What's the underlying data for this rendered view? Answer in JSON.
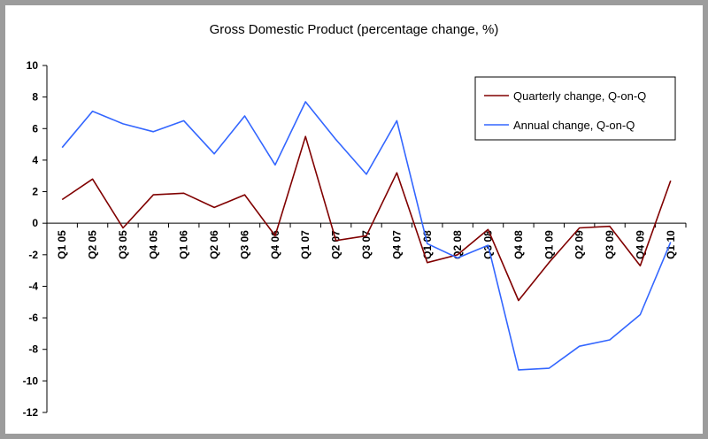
{
  "chart_data": {
    "type": "line",
    "title": "Gross Domestic Product (percentage change, %)",
    "xlabel": "",
    "ylabel": "",
    "categories": [
      "Q1 05",
      "Q2 05",
      "Q3 05",
      "Q4 05",
      "Q1 06",
      "Q2 06",
      "Q3 06",
      "Q4 06",
      "Q1 07",
      "Q2 07",
      "Q3 07",
      "Q4 07",
      "Q1 08",
      "Q2 08",
      "Q3 08",
      "Q4 08",
      "Q1 09",
      "Q2 09",
      "Q3 09",
      "Q4 09",
      "Q1 10"
    ],
    "ylim": [
      -12,
      10
    ],
    "yticks": [
      "-12",
      "-10",
      "-8",
      "-6",
      "-4",
      "-2",
      "0",
      "2",
      "4",
      "6",
      "8",
      "10"
    ],
    "grid": false,
    "legend_position": "top-right",
    "series": [
      {
        "name": "Quarterly change, Q-on-Q",
        "color": "#800000",
        "values": [
          1.5,
          2.8,
          -0.3,
          1.8,
          1.9,
          1.0,
          1.8,
          -0.8,
          5.5,
          -1.1,
          -0.8,
          3.2,
          -2.5,
          -2.0,
          -0.4,
          -4.9,
          -2.5,
          -0.3,
          -0.2,
          -2.7,
          2.7
        ]
      },
      {
        "name": "Annual change, Q-on-Q",
        "color": "#3366ff",
        "values": [
          4.8,
          7.1,
          6.3,
          5.8,
          6.5,
          4.4,
          6.8,
          3.7,
          7.7,
          5.3,
          3.1,
          6.5,
          -1.3,
          -2.2,
          -1.4,
          -9.3,
          -9.2,
          -7.8,
          -7.4,
          -5.8,
          -1.2
        ]
      }
    ]
  }
}
